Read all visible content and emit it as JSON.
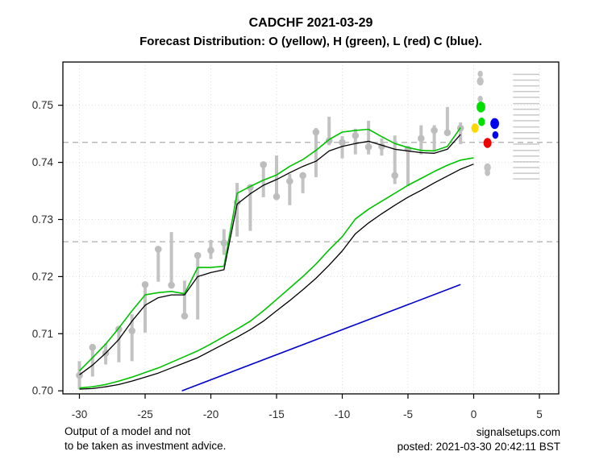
{
  "header": {
    "title": "CADCHF 2021-03-29",
    "subtitle": "Forecast Distribution: O (yellow), H (green), L (red) C (blue)."
  },
  "footer": {
    "disclaimer_line1": "Output of a model and not",
    "disclaimer_line2": "to be taken as investment advice.",
    "site": "signalsetups.com",
    "posted": "posted: 2021-03-30 20:42:11 BST"
  },
  "chart_data": {
    "type": "line",
    "title": "CADCHF 2021-03-29",
    "subtitle": "Forecast Distribution: O (yellow), H (green), L (red) C (blue).",
    "xlabel": "",
    "ylabel": "",
    "xlim": [
      -31.2,
      6.5
    ],
    "ylim": [
      0.6995,
      0.7576
    ],
    "x_ticks": [
      -30,
      -25,
      -20,
      -15,
      -10,
      -5,
      0,
      5
    ],
    "y_ticks": [
      "0.70",
      "0.71",
      "0.72",
      "0.73",
      "0.74",
      "0.75"
    ],
    "grid": true,
    "legend_position": "in-subtitle",
    "reference_lines": [
      0.7435,
      0.7261
    ],
    "price_bars": {
      "comment": "observed bars: [x, low, high, dot]",
      "values": [
        [
          -30,
          0.7003,
          0.7052,
          0.7027
        ],
        [
          -29,
          0.7025,
          0.7082,
          0.7076
        ],
        [
          -28,
          0.7046,
          0.7083,
          0.7066
        ],
        [
          -27,
          0.705,
          0.7113,
          0.7108
        ],
        [
          -26,
          0.7052,
          0.7134,
          0.7105
        ],
        [
          -25,
          0.7102,
          0.7191,
          0.7186
        ],
        [
          -24,
          0.7191,
          0.7252,
          0.7248
        ],
        [
          -23,
          0.7181,
          0.7278,
          0.7185
        ],
        [
          -22,
          0.7127,
          0.7193,
          0.7131
        ],
        [
          -21,
          0.7125,
          0.724,
          0.7237
        ],
        [
          -20,
          0.7231,
          0.7264,
          0.7246
        ],
        [
          -19,
          0.7238,
          0.7283,
          0.7259
        ],
        [
          -18,
          0.727,
          0.7364,
          0.733
        ],
        [
          -17,
          0.728,
          0.736,
          0.7356
        ],
        [
          -16,
          0.7339,
          0.74,
          0.7396
        ],
        [
          -15,
          0.7334,
          0.7412,
          0.734
        ],
        [
          -14,
          0.7325,
          0.738,
          0.7367
        ],
        [
          -13,
          0.7346,
          0.7381,
          0.7377
        ],
        [
          -12,
          0.7374,
          0.746,
          0.7453
        ],
        [
          -11,
          0.743,
          0.748,
          0.7438
        ],
        [
          -10,
          0.7407,
          0.7446,
          0.7435
        ],
        [
          -9,
          0.7414,
          0.7459,
          0.7447
        ],
        [
          -8,
          0.7414,
          0.7473,
          0.7427
        ],
        [
          -7,
          0.7412,
          0.7442,
          0.7428
        ],
        [
          -6,
          0.7362,
          0.7447,
          0.7377
        ],
        [
          -5,
          0.7358,
          0.7428,
          0.7423
        ],
        [
          -4,
          0.7414,
          0.7465,
          0.7442
        ],
        [
          -3,
          0.7419,
          0.7465,
          0.7456
        ],
        [
          -2,
          0.7447,
          0.7497,
          0.7452
        ],
        [
          -1,
          0.7432,
          0.747,
          0.746
        ]
      ]
    },
    "series": [
      {
        "name": "upper-green-fit",
        "color": "#00C300",
        "width": 1.6,
        "x_start": -30,
        "values": [
          0.7035,
          0.7058,
          0.7082,
          0.711,
          0.714,
          0.7168,
          0.7172,
          0.7174,
          0.717,
          0.7216,
          0.7216,
          0.7218,
          0.7346,
          0.7358,
          0.7369,
          0.7378,
          0.7393,
          0.7405,
          0.7421,
          0.744,
          0.7453,
          0.7456,
          0.7458,
          0.7445,
          0.7433,
          0.7426,
          0.7421,
          0.742,
          0.7428,
          0.7461
        ]
      },
      {
        "name": "upper-black-fit",
        "color": "#000000",
        "width": 1.3,
        "x_start": -30,
        "values": [
          0.7028,
          0.7045,
          0.7066,
          0.709,
          0.7122,
          0.715,
          0.7163,
          0.7168,
          0.7168,
          0.72,
          0.7207,
          0.7212,
          0.7327,
          0.7345,
          0.736,
          0.737,
          0.7382,
          0.7393,
          0.7402,
          0.742,
          0.7428,
          0.7433,
          0.7437,
          0.743,
          0.7423,
          0.742,
          0.7417,
          0.7416,
          0.7423,
          0.7449
        ]
      },
      {
        "name": "lower-green-fit",
        "color": "#00C300",
        "width": 1.6,
        "x_start": -30,
        "values": [
          0.7005,
          0.7007,
          0.7011,
          0.7017,
          0.7024,
          0.7032,
          0.704,
          0.705,
          0.706,
          0.707,
          0.7082,
          0.7095,
          0.7108,
          0.7122,
          0.714,
          0.716,
          0.718,
          0.72,
          0.7222,
          0.7247,
          0.727,
          0.7301,
          0.7318,
          0.7332,
          0.7346,
          0.736,
          0.7372,
          0.7384,
          0.7395,
          0.7404,
          0.7408
        ]
      },
      {
        "name": "lower-black-fit",
        "color": "#000000",
        "width": 1.3,
        "x_start": -30,
        "values": [
          0.7003,
          0.7004,
          0.7007,
          0.7011,
          0.7017,
          0.7024,
          0.7031,
          0.704,
          0.7049,
          0.7058,
          0.707,
          0.7082,
          0.7094,
          0.7107,
          0.7122,
          0.714,
          0.7158,
          0.7177,
          0.7197,
          0.722,
          0.7245,
          0.7275,
          0.7294,
          0.731,
          0.7325,
          0.7339,
          0.7351,
          0.7364,
          0.7376,
          0.7388,
          0.7397
        ]
      },
      {
        "name": "blue-trend-line",
        "color": "#0000CD",
        "width": 1.6,
        "x": [
          -22.2,
          -1
        ],
        "values": [
          0.7,
          0.7186
        ]
      }
    ],
    "forecast_dots": [
      {
        "name": "quantile",
        "x": 0.5,
        "y": 0.7555,
        "color": "#C2C2C2",
        "r": 3.2
      },
      {
        "name": "quantile",
        "x": 0.5,
        "y": 0.7542,
        "color": "#C2C2C2",
        "r": 4.2
      },
      {
        "name": "quantile",
        "x": 0.5,
        "y": 0.7511,
        "color": "#C2C2C2",
        "r": 3.2
      },
      {
        "name": "high-forecast",
        "x": 0.55,
        "y": 0.7497,
        "color": "#00E000",
        "r": 5.4
      },
      {
        "name": "high-forecast",
        "x": 0.6,
        "y": 0.7471,
        "color": "#00E000",
        "r": 4.2
      },
      {
        "name": "open-forecast",
        "x": 0.1,
        "y": 0.746,
        "color": "#FFD800",
        "r": 4.6
      },
      {
        "name": "close-forecast",
        "x": 1.6,
        "y": 0.7468,
        "color": "#0000EE",
        "r": 5.4
      },
      {
        "name": "close-forecast",
        "x": 1.65,
        "y": 0.7448,
        "color": "#0000EE",
        "r": 3.8
      },
      {
        "name": "low-forecast",
        "x": 1.05,
        "y": 0.7434,
        "color": "#EE0000",
        "r": 5.0
      },
      {
        "name": "quantile",
        "x": 1.05,
        "y": 0.7391,
        "color": "#C2C2C2",
        "r": 4.2
      },
      {
        "name": "quantile",
        "x": 1.05,
        "y": 0.7382,
        "color": "#C2C2C2",
        "r": 3.4
      }
    ],
    "distribution_whiskers": {
      "x_start": 3.0,
      "x_end": 5.0,
      "color": "#C9C9C9",
      "levels": [
        0.7554,
        0.7544,
        0.7534,
        0.7524,
        0.7514,
        0.7503,
        0.7493,
        0.7483,
        0.7473,
        0.7462,
        0.7452,
        0.7442,
        0.7432,
        0.7421,
        0.7411,
        0.7401,
        0.7391,
        0.7381,
        0.7371
      ]
    },
    "colors": {
      "bar": "#C3C3C3",
      "bar_dot": "#BDBDBD",
      "grid": "#DCDCDC",
      "reference": "#ACACAC",
      "axis_text": "#2B2B2B",
      "border": "#000000",
      "open": "#FFD800",
      "high": "#00E000",
      "low": "#EE0000",
      "close": "#0000EE"
    }
  }
}
